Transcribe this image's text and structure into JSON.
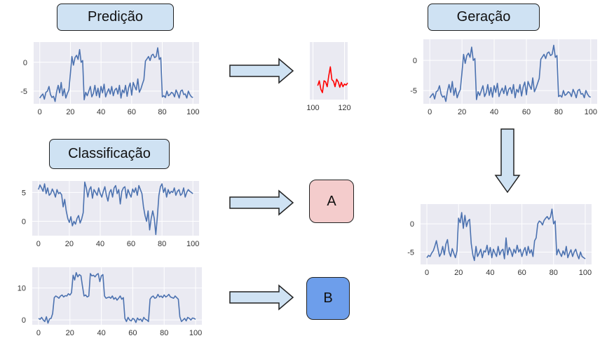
{
  "labels": {
    "prediction": "Predição",
    "generation": "Geração",
    "classification": "Classificação"
  },
  "classes": {
    "a": {
      "text": "A",
      "color": "#f4cccc"
    },
    "b": {
      "text": "B",
      "color": "#6d9eeb"
    }
  },
  "colors": {
    "series": "#4c72b0",
    "forecast": "#ff0000",
    "plot_bg": "#eaeaf2",
    "arrow_fill": "#cfe2f3"
  },
  "chart_data": [
    {
      "id": "prediction_input",
      "type": "line",
      "xlim": [
        -4,
        104
      ],
      "ylim": [
        -7.2,
        3.5
      ],
      "xticks": [
        0,
        20,
        40,
        60,
        80,
        100
      ],
      "yticks": [
        -5,
        0
      ],
      "series": [
        {
          "x_start": 0,
          "values": [
            -6.2,
            -5.8,
            -5.5,
            -6.4,
            -5.2,
            -5.0,
            -4.2,
            -5.6,
            -6.1,
            -5.9,
            -6.8,
            -5.1,
            -4.0,
            -5.3,
            -3.5,
            -5.8,
            -4.6,
            -6.2,
            -5.4,
            -4.8,
            -2.0,
            1.0,
            -0.5,
            0.8,
            1.2,
            0.5,
            2.2,
            0.0,
            0.3,
            -6.5,
            -5.2,
            -5.8,
            -5.0,
            -4.2,
            -6.0,
            -5.4,
            -4.0,
            -5.8,
            -4.5,
            -6.1,
            -4.2,
            -5.3,
            -3.8,
            -6.0,
            -5.2,
            -4.6,
            -5.5,
            -4.2,
            -5.8,
            -4.8,
            -4.5,
            -5.5,
            -4.0,
            -6.2,
            -4.8,
            -5.3,
            -4.0,
            -5.9,
            -4.4,
            -3.6,
            -5.7,
            -3.5,
            -4.2,
            -4.8,
            -2.9,
            -5.2,
            -4.6,
            -3.8,
            -3.0,
            0.2,
            0.6,
            1.0,
            0.3,
            1.2,
            1.4,
            0.8,
            1.0,
            2.5,
            0.5,
            0.8,
            -6.0,
            -5.8,
            -6.1,
            -5.0,
            -5.8,
            -5.6,
            -5.2,
            -5.4,
            -6.0,
            -4.8,
            -5.4,
            -6.2,
            -5.0,
            -4.8,
            -5.6,
            -5.5,
            -6.2,
            -5.0,
            -5.6,
            -6.0,
            -6.1
          ]
        }
      ]
    },
    {
      "id": "prediction_forecast",
      "type": "line",
      "xlim": [
        98,
        122
      ],
      "ylim": [
        -7.2,
        3.5
      ],
      "xticks": [
        100,
        120
      ],
      "yticks": [],
      "series": [
        {
          "x_start": 103,
          "values": [
            -4.6,
            -3.7,
            -5.3,
            -5.9,
            -3.7,
            -3.9,
            -4.8,
            -2.8,
            -1.1,
            -3.5,
            -3.8,
            -4.8,
            -3.4,
            -3.9,
            -4.9,
            -4.0,
            -4.8,
            -4.3,
            -4.5,
            -4.1
          ]
        }
      ]
    },
    {
      "id": "generation_top",
      "type": "line",
      "xlim": [
        -4,
        104
      ],
      "ylim": [
        -7.2,
        3.5
      ],
      "xticks": [
        0,
        20,
        40,
        60,
        80,
        100
      ],
      "yticks": [
        -5,
        0
      ],
      "series": [
        {
          "x_start": 0,
          "values": [
            -6.2,
            -5.8,
            -5.5,
            -6.4,
            -5.2,
            -5.0,
            -4.2,
            -5.6,
            -6.1,
            -5.9,
            -6.8,
            -5.1,
            -4.0,
            -5.3,
            -3.5,
            -5.8,
            -4.6,
            -6.2,
            -5.4,
            -4.8,
            -2.0,
            1.0,
            -0.5,
            0.8,
            1.2,
            0.5,
            2.2,
            0.0,
            0.3,
            -6.5,
            -5.2,
            -5.8,
            -5.0,
            -4.2,
            -6.0,
            -5.4,
            -4.0,
            -5.8,
            -4.5,
            -6.1,
            -4.2,
            -5.3,
            -3.8,
            -6.0,
            -5.2,
            -4.6,
            -5.5,
            -4.2,
            -5.8,
            -4.8,
            -4.5,
            -5.5,
            -4.0,
            -6.2,
            -4.8,
            -5.3,
            -4.0,
            -5.9,
            -4.4,
            -3.6,
            -5.7,
            -3.5,
            -4.2,
            -4.8,
            -2.9,
            -5.2,
            -4.6,
            -3.8,
            -3.0,
            0.2,
            0.6,
            1.0,
            0.3,
            1.2,
            1.4,
            0.8,
            1.0,
            2.5,
            0.5,
            0.8,
            -6.0,
            -5.8,
            -6.1,
            -5.0,
            -5.8,
            -5.6,
            -5.2,
            -5.4,
            -6.0,
            -4.8,
            -5.4,
            -6.2,
            -5.0,
            -4.8,
            -5.6,
            -5.5,
            -6.2,
            -5.0,
            -5.6,
            -6.0,
            -6.1
          ]
        }
      ]
    },
    {
      "id": "generation_bottom",
      "type": "line",
      "xlim": [
        -4,
        104
      ],
      "ylim": [
        -7.2,
        3.5
      ],
      "xticks": [
        0,
        20,
        40,
        60,
        80,
        100
      ],
      "yticks": [
        -5,
        0
      ],
      "series": [
        {
          "x_start": 0,
          "values": [
            -6.0,
            -5.6,
            -5.8,
            -5.2,
            -4.8,
            -4.0,
            -3.0,
            -4.5,
            -5.8,
            -5.2,
            -4.0,
            -5.5,
            -3.6,
            -2.8,
            -5.0,
            -5.8,
            -4.4,
            -5.2,
            -6.0,
            -4.8,
            1.0,
            0.2,
            2.0,
            -0.8,
            1.5,
            -0.5,
            0.5,
            0.8,
            -3.5,
            -5.5,
            -6.5,
            -4.0,
            -5.8,
            -5.2,
            -4.5,
            -6.0,
            -4.8,
            -5.0,
            -3.8,
            -5.5,
            -4.2,
            -6.0,
            -4.5,
            -5.2,
            -5.8,
            -4.0,
            -5.5,
            -4.8,
            -4.5,
            -6.2,
            -2.5,
            -5.5,
            -4.2,
            -4.8,
            -5.8,
            -4.5,
            -5.2,
            -3.8,
            -5.0,
            -4.5,
            -5.8,
            -4.8,
            -4.2,
            -5.6,
            -4.0,
            -5.2,
            -4.6,
            -5.8,
            -3.0,
            -2.5,
            0.0,
            0.5,
            0.3,
            -0.2,
            0.6,
            1.0,
            1.3,
            0.8,
            1.2,
            2.6,
            0.0,
            0.5,
            -5.5,
            -4.5,
            -5.2,
            -5.8,
            -4.8,
            -5.5,
            -4.0,
            -6.0,
            -5.2,
            -4.6,
            -5.8,
            -5.0,
            -4.5,
            -5.5,
            -6.2,
            -5.0,
            -5.8,
            -6.0,
            -6.2
          ]
        }
      ]
    },
    {
      "id": "classification_a",
      "type": "line",
      "xlim": [
        -4,
        104
      ],
      "ylim": [
        -2.5,
        7.0
      ],
      "xticks": [
        0,
        20,
        40,
        60,
        80,
        100
      ],
      "yticks": [
        0,
        5
      ],
      "series": [
        {
          "x_start": 0,
          "values": [
            5.5,
            6.3,
            5.8,
            5.2,
            6.5,
            4.8,
            5.8,
            4.5,
            4.8,
            5.6,
            5.0,
            4.2,
            5.5,
            4.8,
            5.0,
            4.6,
            2.5,
            3.8,
            1.8,
            0.5,
            -0.2,
            0.8,
            -0.8,
            0.0,
            -0.5,
            0.5,
            1.0,
            -0.3,
            0.4,
            1.5,
            6.8,
            5.8,
            4.2,
            5.5,
            6.0,
            4.0,
            5.5,
            5.0,
            4.5,
            5.8,
            4.8,
            4.2,
            5.2,
            6.0,
            4.5,
            3.5,
            5.0,
            5.5,
            4.2,
            5.8,
            6.2,
            4.8,
            5.5,
            3.0,
            5.2,
            5.8,
            6.0,
            4.0,
            5.5,
            4.8,
            4.2,
            5.6,
            5.0,
            5.8,
            4.5,
            6.2,
            5.5,
            4.8,
            2.5,
            1.0,
            0.0,
            1.8,
            -1.5,
            0.5,
            1.8,
            0.5,
            -2.3,
            0.8,
            4.5,
            6.0,
            6.5,
            5.0,
            5.8,
            4.2,
            5.5,
            4.8,
            5.2,
            5.0,
            5.8,
            4.5,
            5.2,
            5.5,
            4.5,
            4.8,
            5.8,
            4.2,
            5.0,
            5.5,
            5.2,
            5.0,
            4.8
          ]
        }
      ]
    },
    {
      "id": "classification_b",
      "type": "line",
      "xlim": [
        -4,
        104
      ],
      "ylim": [
        -1.5,
        16.5
      ],
      "xticks": [
        0,
        20,
        40,
        60,
        80,
        100
      ],
      "yticks": [
        0,
        10
      ],
      "series": [
        {
          "x_start": 0,
          "values": [
            0.5,
            0.2,
            0.8,
            0.0,
            -0.5,
            1.0,
            -1.0,
            0.3,
            0.5,
            2.0,
            7.0,
            7.5,
            7.2,
            6.8,
            7.5,
            7.8,
            7.2,
            7.6,
            7.5,
            8.2,
            7.8,
            8.5,
            14.0,
            12.5,
            14.8,
            13.5,
            14.2,
            13.8,
            10.5,
            7.5,
            7.8,
            7.2,
            7.5,
            14.5,
            13.8,
            14.0,
            13.5,
            14.2,
            14.5,
            12.0,
            13.8,
            14.2,
            7.5,
            6.8,
            7.0,
            7.2,
            6.8,
            7.5,
            6.5,
            7.0,
            6.2,
            6.8,
            7.5,
            6.5,
            7.0,
            0.5,
            -0.5,
            0.8,
            0.0,
            -0.3,
            0.5,
            0.2,
            -0.8,
            0.6,
            0.0,
            0.3,
            -0.5,
            0.8,
            0.2,
            0.0,
            -0.5,
            6.5,
            7.2,
            7.5,
            6.8,
            7.0,
            8.0,
            7.2,
            7.5,
            7.0,
            7.8,
            7.2,
            7.5,
            8.0,
            7.2,
            7.0,
            6.8,
            7.5,
            7.0,
            6.5,
            1.0,
            -0.5,
            0.0,
            0.5,
            -0.3,
            0.8,
            0.5,
            0.0,
            0.6,
            0.5,
            0.2
          ]
        }
      ]
    }
  ]
}
